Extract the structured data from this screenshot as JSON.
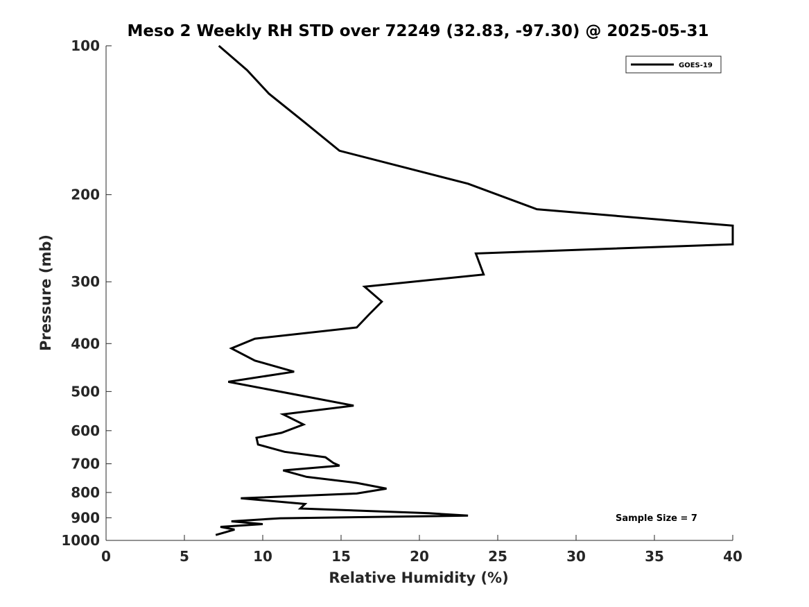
{
  "chart_data": {
    "type": "line",
    "title": "Meso 2 Weekly RH STD over 72249 (32.83, -97.30) @ 2025-05-31",
    "xlabel": "Relative Humidity (%)",
    "ylabel": "Pressure (mb)",
    "xlim": [
      0,
      40
    ],
    "ylim": [
      100,
      1000
    ],
    "yscale": "log",
    "yreversed": true,
    "grid": false,
    "x_ticks": [
      0,
      5,
      10,
      15,
      20,
      25,
      30,
      35,
      40
    ],
    "y_ticks": [
      100,
      200,
      300,
      400,
      500,
      600,
      700,
      800,
      900,
      1000
    ],
    "legend": {
      "position": "top-right",
      "entries": [
        "GOES-19"
      ]
    },
    "annotations": [
      "Sample Size = 7"
    ],
    "series": [
      {
        "name": "GOES-19",
        "color": "#000000",
        "points": [
          [
            7.2,
            100
          ],
          [
            9.0,
            112
          ],
          [
            10.4,
            125
          ],
          [
            12.7,
            143
          ],
          [
            14.9,
            163
          ],
          [
            19.0,
            176
          ],
          [
            23.1,
            190
          ],
          [
            27.5,
            214
          ],
          [
            40,
            231
          ],
          [
            40,
            252
          ],
          [
            23.6,
            263
          ],
          [
            24.1,
            290
          ],
          [
            16.5,
            307
          ],
          [
            17.6,
            329
          ],
          [
            16.8,
            349
          ],
          [
            16.0,
            371
          ],
          [
            9.5,
            391
          ],
          [
            8.0,
            409
          ],
          [
            9.5,
            433
          ],
          [
            12.0,
            456
          ],
          [
            7.8,
            478
          ],
          [
            12.5,
            510
          ],
          [
            15.8,
            534
          ],
          [
            11.3,
            556
          ],
          [
            12.6,
            583
          ],
          [
            11.2,
            606
          ],
          [
            9.6,
            620
          ],
          [
            9.7,
            640
          ],
          [
            11.4,
            662
          ],
          [
            14.0,
            679
          ],
          [
            14.5,
            697
          ],
          [
            14.9,
            706
          ],
          [
            11.3,
            722
          ],
          [
            12.8,
            744
          ],
          [
            16.0,
            765
          ],
          [
            17.9,
            786
          ],
          [
            16.0,
            804
          ],
          [
            8.6,
            822
          ],
          [
            12.7,
            844
          ],
          [
            12.4,
            862
          ],
          [
            20.6,
            881
          ],
          [
            23.1,
            891
          ],
          [
            11.1,
            902
          ],
          [
            8.0,
            915
          ],
          [
            10.0,
            927
          ],
          [
            7.3,
            939
          ],
          [
            8.2,
            951
          ],
          [
            7.6,
            963
          ],
          [
            7.0,
            975
          ]
        ]
      }
    ]
  }
}
